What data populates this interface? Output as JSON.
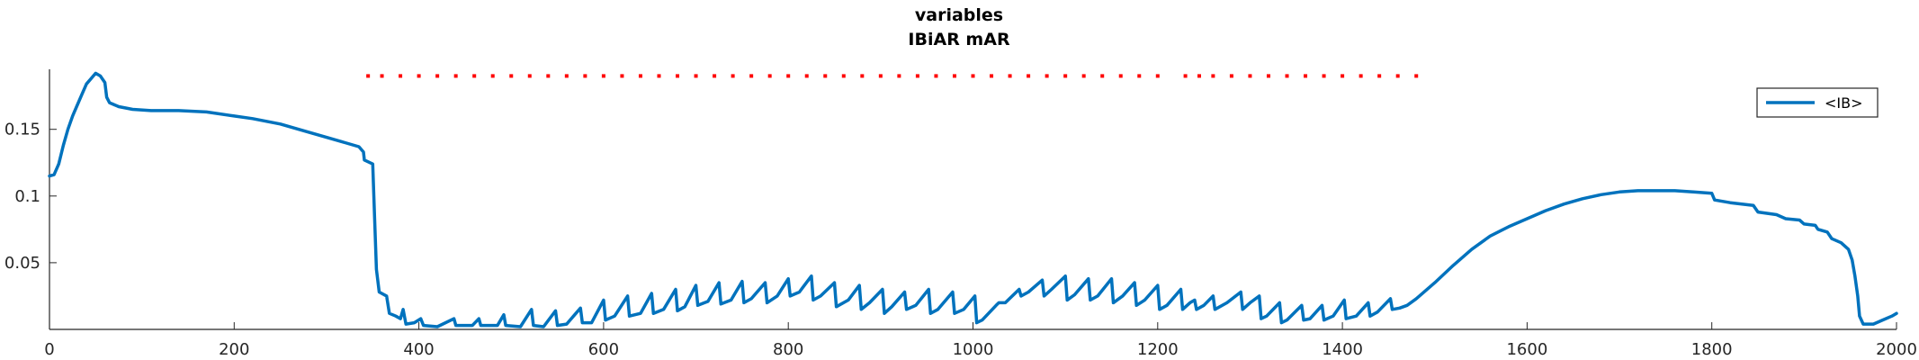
{
  "chart_data": {
    "type": "line",
    "title": [
      "variables",
      "IBiAR mAR"
    ],
    "xlabel": "",
    "ylabel": "",
    "xlim": [
      0,
      2000
    ],
    "ylim": [
      0,
      0.195
    ],
    "x_ticks": [
      0,
      200,
      400,
      600,
      800,
      1000,
      1200,
      1400,
      1600,
      1800,
      2000
    ],
    "x_tick_labels": [
      "0",
      "200",
      "400",
      "600",
      "800",
      "1000",
      "1200",
      "1400",
      "1600",
      "1800",
      "2000"
    ],
    "y_ticks": [
      0.05,
      0.1,
      0.15
    ],
    "y_tick_labels": [
      "0.05",
      "0.1",
      "0.15"
    ],
    "grid": false,
    "legend_position": "top-right",
    "colors": {
      "series": "#0072BD",
      "markers": "#FF0000",
      "axis": "#262626"
    },
    "series": [
      {
        "name": "<IB>",
        "points": [
          [
            0,
            0.115
          ],
          [
            5,
            0.116
          ],
          [
            10,
            0.124
          ],
          [
            15,
            0.138
          ],
          [
            20,
            0.15
          ],
          [
            25,
            0.16
          ],
          [
            30,
            0.168
          ],
          [
            35,
            0.176
          ],
          [
            40,
            0.184
          ],
          [
            45,
            0.188
          ],
          [
            50,
            0.192
          ],
          [
            55,
            0.19
          ],
          [
            60,
            0.185
          ],
          [
            62,
            0.174
          ],
          [
            65,
            0.17
          ],
          [
            75,
            0.167
          ],
          [
            90,
            0.165
          ],
          [
            110,
            0.164
          ],
          [
            140,
            0.164
          ],
          [
            170,
            0.163
          ],
          [
            200,
            0.16
          ],
          [
            220,
            0.158
          ],
          [
            250,
            0.154
          ],
          [
            280,
            0.148
          ],
          [
            300,
            0.144
          ],
          [
            320,
            0.14
          ],
          [
            335,
            0.137
          ],
          [
            340,
            0.133
          ],
          [
            341,
            0.127
          ],
          [
            350,
            0.124
          ],
          [
            352,
            0.085
          ],
          [
            354,
            0.045
          ],
          [
            357,
            0.028
          ],
          [
            365,
            0.025
          ],
          [
            368,
            0.012
          ],
          [
            375,
            0.01
          ],
          [
            380,
            0.008
          ],
          [
            383,
            0.015
          ],
          [
            386,
            0.004
          ],
          [
            395,
            0.005
          ],
          [
            402,
            0.008
          ],
          [
            405,
            0.003
          ],
          [
            420,
            0.002
          ],
          [
            438,
            0.008
          ],
          [
            440,
            0.003
          ],
          [
            458,
            0.003
          ],
          [
            465,
            0.008
          ],
          [
            467,
            0.003
          ],
          [
            485,
            0.003
          ],
          [
            492,
            0.011
          ],
          [
            494,
            0.003
          ],
          [
            510,
            0.002
          ],
          [
            522,
            0.015
          ],
          [
            524,
            0.003
          ],
          [
            535,
            0.002
          ],
          [
            548,
            0.014
          ],
          [
            550,
            0.003
          ],
          [
            560,
            0.004
          ],
          [
            575,
            0.016
          ],
          [
            577,
            0.005
          ],
          [
            587,
            0.005
          ],
          [
            600,
            0.022
          ],
          [
            602,
            0.007
          ],
          [
            612,
            0.01
          ],
          [
            626,
            0.025
          ],
          [
            628,
            0.01
          ],
          [
            640,
            0.012
          ],
          [
            652,
            0.027
          ],
          [
            654,
            0.012
          ],
          [
            665,
            0.015
          ],
          [
            678,
            0.03
          ],
          [
            680,
            0.014
          ],
          [
            688,
            0.017
          ],
          [
            700,
            0.033
          ],
          [
            702,
            0.018
          ],
          [
            713,
            0.021
          ],
          [
            725,
            0.035
          ],
          [
            727,
            0.019
          ],
          [
            738,
            0.022
          ],
          [
            750,
            0.036
          ],
          [
            752,
            0.02
          ],
          [
            760,
            0.023
          ],
          [
            775,
            0.035
          ],
          [
            777,
            0.02
          ],
          [
            788,
            0.025
          ],
          [
            800,
            0.038
          ],
          [
            802,
            0.025
          ],
          [
            812,
            0.028
          ],
          [
            825,
            0.04
          ],
          [
            827,
            0.022
          ],
          [
            835,
            0.025
          ],
          [
            850,
            0.035
          ],
          [
            852,
            0.017
          ],
          [
            865,
            0.022
          ],
          [
            877,
            0.033
          ],
          [
            879,
            0.015
          ],
          [
            888,
            0.02
          ],
          [
            902,
            0.03
          ],
          [
            904,
            0.012
          ],
          [
            912,
            0.017
          ],
          [
            926,
            0.028
          ],
          [
            928,
            0.015
          ],
          [
            938,
            0.018
          ],
          [
            952,
            0.03
          ],
          [
            954,
            0.012
          ],
          [
            962,
            0.015
          ],
          [
            978,
            0.028
          ],
          [
            980,
            0.012
          ],
          [
            990,
            0.015
          ],
          [
            1002,
            0.025
          ],
          [
            1004,
            0.005
          ],
          [
            1010,
            0.007
          ],
          [
            1025,
            0.018
          ],
          [
            1028,
            0.02
          ],
          [
            1035,
            0.02
          ],
          [
            1050,
            0.03
          ],
          [
            1052,
            0.025
          ],
          [
            1060,
            0.028
          ],
          [
            1075,
            0.037
          ],
          [
            1077,
            0.025
          ],
          [
            1085,
            0.03
          ],
          [
            1100,
            0.04
          ],
          [
            1102,
            0.022
          ],
          [
            1110,
            0.026
          ],
          [
            1125,
            0.038
          ],
          [
            1127,
            0.022
          ],
          [
            1135,
            0.025
          ],
          [
            1150,
            0.038
          ],
          [
            1152,
            0.02
          ],
          [
            1162,
            0.025
          ],
          [
            1175,
            0.035
          ],
          [
            1177,
            0.018
          ],
          [
            1186,
            0.022
          ],
          [
            1200,
            0.033
          ],
          [
            1202,
            0.015
          ],
          [
            1210,
            0.018
          ],
          [
            1225,
            0.03
          ],
          [
            1227,
            0.015
          ],
          [
            1235,
            0.02
          ],
          [
            1240,
            0.022
          ],
          [
            1242,
            0.015
          ],
          [
            1250,
            0.018
          ],
          [
            1260,
            0.025
          ],
          [
            1262,
            0.015
          ],
          [
            1275,
            0.02
          ],
          [
            1290,
            0.028
          ],
          [
            1292,
            0.015
          ],
          [
            1300,
            0.02
          ],
          [
            1310,
            0.025
          ],
          [
            1312,
            0.008
          ],
          [
            1318,
            0.01
          ],
          [
            1332,
            0.02
          ],
          [
            1334,
            0.005
          ],
          [
            1340,
            0.007
          ],
          [
            1356,
            0.018
          ],
          [
            1358,
            0.007
          ],
          [
            1365,
            0.008
          ],
          [
            1378,
            0.018
          ],
          [
            1380,
            0.007
          ],
          [
            1390,
            0.01
          ],
          [
            1402,
            0.022
          ],
          [
            1404,
            0.008
          ],
          [
            1415,
            0.01
          ],
          [
            1428,
            0.02
          ],
          [
            1430,
            0.01
          ],
          [
            1438,
            0.013
          ],
          [
            1452,
            0.023
          ],
          [
            1454,
            0.015
          ],
          [
            1462,
            0.016
          ],
          [
            1470,
            0.018
          ],
          [
            1480,
            0.023
          ],
          [
            1500,
            0.035
          ],
          [
            1520,
            0.048
          ],
          [
            1540,
            0.06
          ],
          [
            1560,
            0.07
          ],
          [
            1580,
            0.077
          ],
          [
            1600,
            0.083
          ],
          [
            1620,
            0.089
          ],
          [
            1640,
            0.094
          ],
          [
            1660,
            0.098
          ],
          [
            1680,
            0.101
          ],
          [
            1700,
            0.103
          ],
          [
            1720,
            0.104
          ],
          [
            1740,
            0.104
          ],
          [
            1760,
            0.104
          ],
          [
            1780,
            0.103
          ],
          [
            1800,
            0.102
          ],
          [
            1803,
            0.097
          ],
          [
            1820,
            0.095
          ],
          [
            1845,
            0.093
          ],
          [
            1850,
            0.088
          ],
          [
            1870,
            0.086
          ],
          [
            1880,
            0.083
          ],
          [
            1895,
            0.082
          ],
          [
            1900,
            0.079
          ],
          [
            1912,
            0.078
          ],
          [
            1915,
            0.075
          ],
          [
            1925,
            0.073
          ],
          [
            1930,
            0.068
          ],
          [
            1940,
            0.065
          ],
          [
            1948,
            0.06
          ],
          [
            1952,
            0.052
          ],
          [
            1955,
            0.04
          ],
          [
            1958,
            0.025
          ],
          [
            1960,
            0.01
          ],
          [
            1964,
            0.004
          ],
          [
            1975,
            0.004
          ],
          [
            1985,
            0.007
          ],
          [
            1995,
            0.01
          ],
          [
            2000,
            0.012
          ]
        ]
      }
    ],
    "marker_series": {
      "style": "dotted",
      "y": 0.19,
      "x": [
        345,
        360,
        380,
        400,
        420,
        440,
        460,
        480,
        500,
        520,
        540,
        560,
        580,
        600,
        620,
        640,
        660,
        680,
        700,
        720,
        740,
        760,
        780,
        800,
        820,
        840,
        860,
        880,
        900,
        920,
        940,
        960,
        980,
        1000,
        1020,
        1040,
        1060,
        1080,
        1100,
        1120,
        1140,
        1160,
        1180,
        1200,
        1230,
        1245,
        1260,
        1280,
        1300,
        1320,
        1340,
        1360,
        1380,
        1400,
        1420,
        1440,
        1460,
        1480
      ]
    }
  }
}
